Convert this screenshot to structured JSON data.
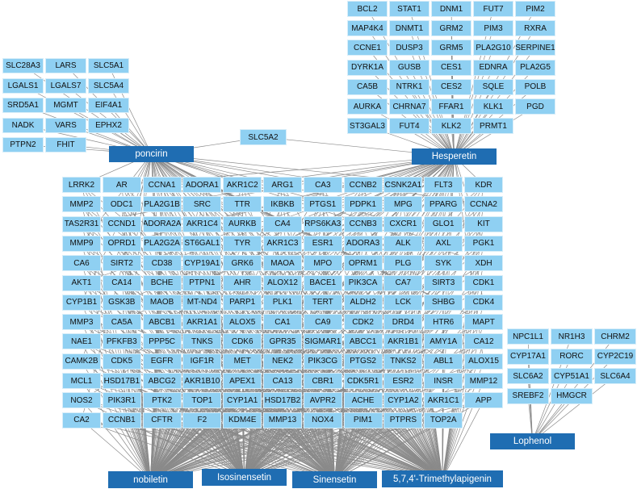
{
  "compounds": [
    "poncirin",
    "Hesperetin",
    "nobiletin",
    "Isosinensetin",
    "Sinensetin",
    "5,7,4'-Trimethylapigenin",
    "Lophenol"
  ],
  "target_groups": [
    {
      "rows": [
        [
          "SLC28A3",
          "LARS",
          "SLC5A1"
        ],
        [
          "LGALS1",
          "LGALS7",
          "SLC5A4"
        ],
        [
          "SRD5A1",
          "MGMT",
          "EIF4A1"
        ],
        [
          "NADK",
          "VARS",
          "EPHX2"
        ],
        [
          "PTPN2",
          "FHIT"
        ]
      ]
    },
    {
      "rows": [
        [
          "BCL2",
          "STAT1",
          "DNM1",
          "FUT7",
          "PIM2"
        ],
        [
          "MAP4K4",
          "DNMT1",
          "GRM2",
          "PIM3",
          "RXRA"
        ],
        [
          "CCNE1",
          "DUSP3",
          "GRM5",
          "PLA2G10",
          "SERPINE1"
        ],
        [
          "DYRK1A",
          "GUSB",
          "CES1",
          "EDNRA",
          "PLA2G5"
        ],
        [
          "CA5B",
          "NTRK1",
          "CES2",
          "SQLE",
          "POLB"
        ],
        [
          "AURKA",
          "CHRNA7",
          "FFAR1",
          "KLK1",
          "PGD"
        ],
        [
          "ST3GAL3",
          "FUT4",
          "KLK2",
          "PRMT1"
        ]
      ]
    },
    {
      "rows": [
        [
          "SLC5A2"
        ]
      ]
    },
    {
      "rows": [
        [
          "LRRK2",
          "AR",
          "CCNA1",
          "ADORA1",
          "AKR1C2",
          "ARG1",
          "CA3",
          "CCNB2",
          "CSNK2A1",
          "FLT3",
          "KDR"
        ],
        [
          "MMP2",
          "ODC1",
          "PLA2G1B",
          "SRC",
          "TTR",
          "IKBKB",
          "PTGS1",
          "PDPK1",
          "MPG",
          "PPARG",
          "CCNA2"
        ],
        [
          "TAS2R31",
          "CCND1",
          "ADORA2A",
          "AKR1C4",
          "AURKB",
          "CA4",
          "RPS6KA3",
          "CCNB3",
          "CXCR1",
          "GLO1",
          "KIT"
        ],
        [
          "MMP9",
          "OPRD1",
          "PLA2G2A",
          "ST6GAL1",
          "TYR",
          "AKR1C3",
          "ESR1",
          "ADORA3",
          "ALK",
          "AXL",
          "PGK1"
        ],
        [
          "CA6",
          "SIRT2",
          "CD38",
          "CYP19A1",
          "GRK6",
          "MAOA",
          "MPO",
          "OPRM1",
          "PLG",
          "SYK",
          "XDH"
        ],
        [
          "AKT1",
          "CA14",
          "BCHE",
          "PTPN1",
          "AHR",
          "ALOX12",
          "BACE1",
          "PIK3CA",
          "CA7",
          "SIRT3",
          "CDK1"
        ],
        [
          "CYP1B1",
          "GSK3B",
          "MAOB",
          "MT-ND4",
          "PARP1",
          "PLK1",
          "TERT",
          "ALDH2",
          "LCK",
          "SHBG",
          "CDK4"
        ],
        [
          "MMP3",
          "CA5A",
          "ABCB1",
          "AKR1A1",
          "ALOX5",
          "CA1",
          "CA9",
          "CDK2",
          "DRD4",
          "HTR6",
          "MAPT"
        ],
        [
          "NAE1",
          "PFKFB3",
          "PPP5C",
          "TNKS",
          "CDK6",
          "GPR35",
          "SIGMAR1",
          "ABCC1",
          "AKR1B1",
          "AMY1A",
          "CA12"
        ],
        [
          "CAMK2B",
          "CDK5",
          "EGFR",
          "IGF1R",
          "MET",
          "NEK2",
          "PIK3CG",
          "PTGS2",
          "TNKS2",
          "ABL1",
          "ALOX15"
        ],
        [
          "MCL1",
          "HSD17B1",
          "ABCG2",
          "AKR1B10",
          "APEX1",
          "CA13",
          "CBR1",
          "CDK5R1",
          "ESR2",
          "INSR",
          "MMP12"
        ],
        [
          "NOS2",
          "PIK3R1",
          "PTK2",
          "TOP1",
          "CYP1A1",
          "HSD17B2",
          "AVPR2",
          "ACHE",
          "CYP1A2",
          "AKR1C1",
          "APP"
        ],
        [
          "CA2",
          "CCNB1",
          "CFTR",
          "F2",
          "KDM4E",
          "MMP13",
          "NOX4",
          "PIM1",
          "PTPRS",
          "TOP2A"
        ]
      ]
    },
    {
      "rows": [
        [
          "NPC1L1",
          "NR1H3",
          "CHRM2"
        ],
        [
          "CYP17A1",
          "RORC",
          "CYP2C19"
        ],
        [
          "SLC6A2",
          "CYP51A1",
          "SLC6A4"
        ],
        [
          "SREBF2",
          "HMGCR"
        ]
      ]
    }
  ]
}
